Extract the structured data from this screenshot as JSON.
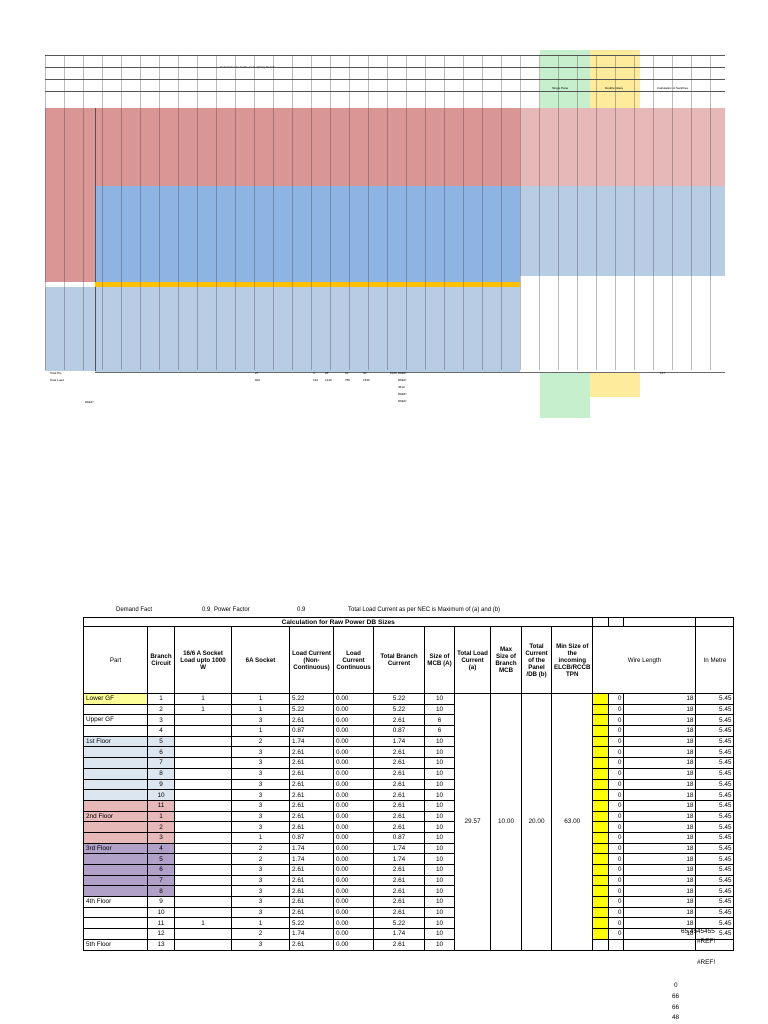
{
  "top_sheet": {
    "title_line": "Calculation for Cable and Lighting Details",
    "total_label": "Total Power",
    "footer_labels": [
      "Total Pts",
      "Total Load",
      "#REF!"
    ],
    "footer_values": [
      "27",
      "4",
      "28",
      "31",
      "30",
      "9180",
      "600",
      "192",
      "1440",
      "780",
      "1536",
      "#REF!",
      "#REF!",
      "4512",
      "#REF!",
      "#REF!",
      "147"
    ],
    "side_headers": [
      "Single Pane",
      "Double Glass",
      "Calculation of Switches"
    ],
    "bands": {
      "green": "#c6efce",
      "yellow": "#ffeb9c"
    }
  },
  "header": {
    "demand_label": "Demand Fact",
    "power_factor_value": "0.9",
    "power_factor_label": "Power Factor",
    "pf_value2": "0.9",
    "nec_note": "Total Load Current as per NEC is Maximum of (a) and (b)"
  },
  "table": {
    "title": "Calculation for Raw Power DB Sizes",
    "columns": [
      "Part",
      "Branch Circuit",
      "16/6 A Socket Load upto 1000 W",
      "6A Socket",
      "Load Current (Non-Continuous)",
      "Load Current Continuous",
      "Total Branch Current",
      "Size of MCB (A)",
      "Total Load Current (a)",
      "Max Size of Branch MCB",
      "Total Current of the Panel /DB (b)",
      "Min Size of the incoming ELCB/RCCB TPN",
      "Wire Length",
      "In Metre"
    ],
    "merged": {
      "total_load": "29.57",
      "max_mcb": "10.00",
      "panel_current": "20.00",
      "elcb": "63.00"
    },
    "rows": [
      {
        "part": "Lower GF",
        "bc": "1",
        "s16": "1",
        "s6": "1",
        "lnc": "5.22",
        "lc": "0.00",
        "tbc": "5.22",
        "mcb": "10",
        "wl": "0",
        "w2": "18",
        "m": "5.45",
        "cls": "lower-gf"
      },
      {
        "part": "",
        "bc": "2",
        "s16": "1",
        "s6": "1",
        "lnc": "5.22",
        "lc": "0.00",
        "tbc": "5.22",
        "mcb": "10",
        "wl": "0",
        "w2": "18",
        "m": "5.45",
        "cls": ""
      },
      {
        "part": "Upper GF",
        "bc": "3",
        "s16": "",
        "s6": "3",
        "lnc": "2.61",
        "lc": "0.00",
        "tbc": "2.61",
        "mcb": "6",
        "wl": "0",
        "w2": "18",
        "m": "5.45",
        "cls": ""
      },
      {
        "part": "",
        "bc": "4",
        "s16": "",
        "s6": "1",
        "lnc": "0.87",
        "lc": "0.00",
        "tbc": "0.87",
        "mcb": "6",
        "wl": "0",
        "w2": "18",
        "m": "5.45",
        "cls": ""
      },
      {
        "part": "1st Floor",
        "bc": "5",
        "s16": "",
        "s6": "2",
        "lnc": "1.74",
        "lc": "0.00",
        "tbc": "1.74",
        "mcb": "10",
        "wl": "0",
        "w2": "18",
        "m": "5.45",
        "cls": "blue"
      },
      {
        "part": "",
        "bc": "6",
        "s16": "",
        "s6": "3",
        "lnc": "2.61",
        "lc": "0.00",
        "tbc": "2.61",
        "mcb": "10",
        "wl": "0",
        "w2": "18",
        "m": "5.45",
        "cls": "blue"
      },
      {
        "part": "",
        "bc": "7",
        "s16": "",
        "s6": "3",
        "lnc": "2.61",
        "lc": "0.00",
        "tbc": "2.61",
        "mcb": "10",
        "wl": "0",
        "w2": "18",
        "m": "5.45",
        "cls": "blue"
      },
      {
        "part": "",
        "bc": "8",
        "s16": "",
        "s6": "3",
        "lnc": "2.61",
        "lc": "0.00",
        "tbc": "2.61",
        "mcb": "10",
        "wl": "0",
        "w2": "18",
        "m": "5.45",
        "cls": "blue"
      },
      {
        "part": "",
        "bc": "9",
        "s16": "",
        "s6": "3",
        "lnc": "2.61",
        "lc": "0.00",
        "tbc": "2.61",
        "mcb": "10",
        "wl": "0",
        "w2": "18",
        "m": "5.45",
        "cls": "blue"
      },
      {
        "part": "",
        "bc": "10",
        "s16": "",
        "s6": "3",
        "lnc": "2.61",
        "lc": "0.00",
        "tbc": "2.61",
        "mcb": "10",
        "wl": "0",
        "w2": "18",
        "m": "5.45",
        "cls": "blue"
      },
      {
        "part": "",
        "bc": "11",
        "s16": "",
        "s6": "3",
        "lnc": "2.61",
        "lc": "0.00",
        "tbc": "2.61",
        "mcb": "10",
        "wl": "0",
        "w2": "18",
        "m": "5.45",
        "cls": "pink"
      },
      {
        "part": "2nd Floor",
        "bc": "1",
        "s16": "",
        "s6": "3",
        "lnc": "2.61",
        "lc": "0.00",
        "tbc": "2.61",
        "mcb": "10",
        "wl": "0",
        "w2": "18",
        "m": "5.45",
        "cls": "pink"
      },
      {
        "part": "",
        "bc": "2",
        "s16": "",
        "s6": "3",
        "lnc": "2.61",
        "lc": "0.00",
        "tbc": "2.61",
        "mcb": "10",
        "wl": "0",
        "w2": "18",
        "m": "5.45",
        "cls": "pink"
      },
      {
        "part": "",
        "bc": "3",
        "s16": "",
        "s6": "1",
        "lnc": "0.87",
        "lc": "0.00",
        "tbc": "0.87",
        "mcb": "10",
        "wl": "0",
        "w2": "18",
        "m": "5.45",
        "cls": "pink"
      },
      {
        "part": "3rd Floor",
        "bc": "4",
        "s16": "",
        "s6": "2",
        "lnc": "1.74",
        "lc": "0.00",
        "tbc": "1.74",
        "mcb": "10",
        "wl": "0",
        "w2": "18",
        "m": "5.45",
        "cls": "purple"
      },
      {
        "part": "",
        "bc": "5",
        "s16": "",
        "s6": "2",
        "lnc": "1.74",
        "lc": "0.00",
        "tbc": "1.74",
        "mcb": "10",
        "wl": "0",
        "w2": "18",
        "m": "5.45",
        "cls": "purple"
      },
      {
        "part": "",
        "bc": "6",
        "s16": "",
        "s6": "3",
        "lnc": "2.61",
        "lc": "0.00",
        "tbc": "2.61",
        "mcb": "10",
        "wl": "0",
        "w2": "18",
        "m": "5.45",
        "cls": "purple"
      },
      {
        "part": "",
        "bc": "7",
        "s16": "",
        "s6": "3",
        "lnc": "2.61",
        "lc": "0.00",
        "tbc": "2.61",
        "mcb": "10",
        "wl": "0",
        "w2": "18",
        "m": "5.45",
        "cls": "purple"
      },
      {
        "part": "",
        "bc": "8",
        "s16": "",
        "s6": "3",
        "lnc": "2.61",
        "lc": "0.00",
        "tbc": "2.61",
        "mcb": "10",
        "wl": "0",
        "w2": "18",
        "m": "5.45",
        "cls": "purple"
      },
      {
        "part": "4th Floor",
        "bc": "9",
        "s16": "",
        "s6": "3",
        "lnc": "2.61",
        "lc": "0.00",
        "tbc": "2.61",
        "mcb": "10",
        "wl": "0",
        "w2": "18",
        "m": "5.45",
        "cls": ""
      },
      {
        "part": "",
        "bc": "10",
        "s16": "",
        "s6": "3",
        "lnc": "2.61",
        "lc": "0.00",
        "tbc": "2.61",
        "mcb": "10",
        "wl": "0",
        "w2": "18",
        "m": "5.45",
        "cls": ""
      },
      {
        "part": "",
        "bc": "11",
        "s16": "1",
        "s6": "1",
        "lnc": "5.22",
        "lc": "0.00",
        "tbc": "5.22",
        "mcb": "10",
        "wl": "0",
        "w2": "18",
        "m": "5.45",
        "cls": ""
      },
      {
        "part": "",
        "bc": "12",
        "s16": "",
        "s6": "2",
        "lnc": "1.74",
        "lc": "0.00",
        "tbc": "1.74",
        "mcb": "10",
        "wl": "0",
        "w2": "18",
        "m": "5.45",
        "cls": ""
      },
      {
        "part": "5th Floor",
        "bc": "13",
        "s16": "",
        "s6": "3",
        "lnc": "2.61",
        "lc": "0.00",
        "tbc": "2.61",
        "mcb": "10",
        "wl": "",
        "w2": "",
        "m": "",
        "cls": ""
      }
    ]
  },
  "footer": {
    "total": "65.4545455",
    "ref1": "#REF!",
    "ref2": "#REF!",
    "nums": [
      "0",
      "66",
      "66",
      "48"
    ]
  },
  "colors": {
    "yellow": "#ffff00",
    "lower_gf": "#ffff99",
    "blue": "#dce6f1",
    "pink": "#e6b8b7",
    "purple": "#b1a0c7"
  }
}
